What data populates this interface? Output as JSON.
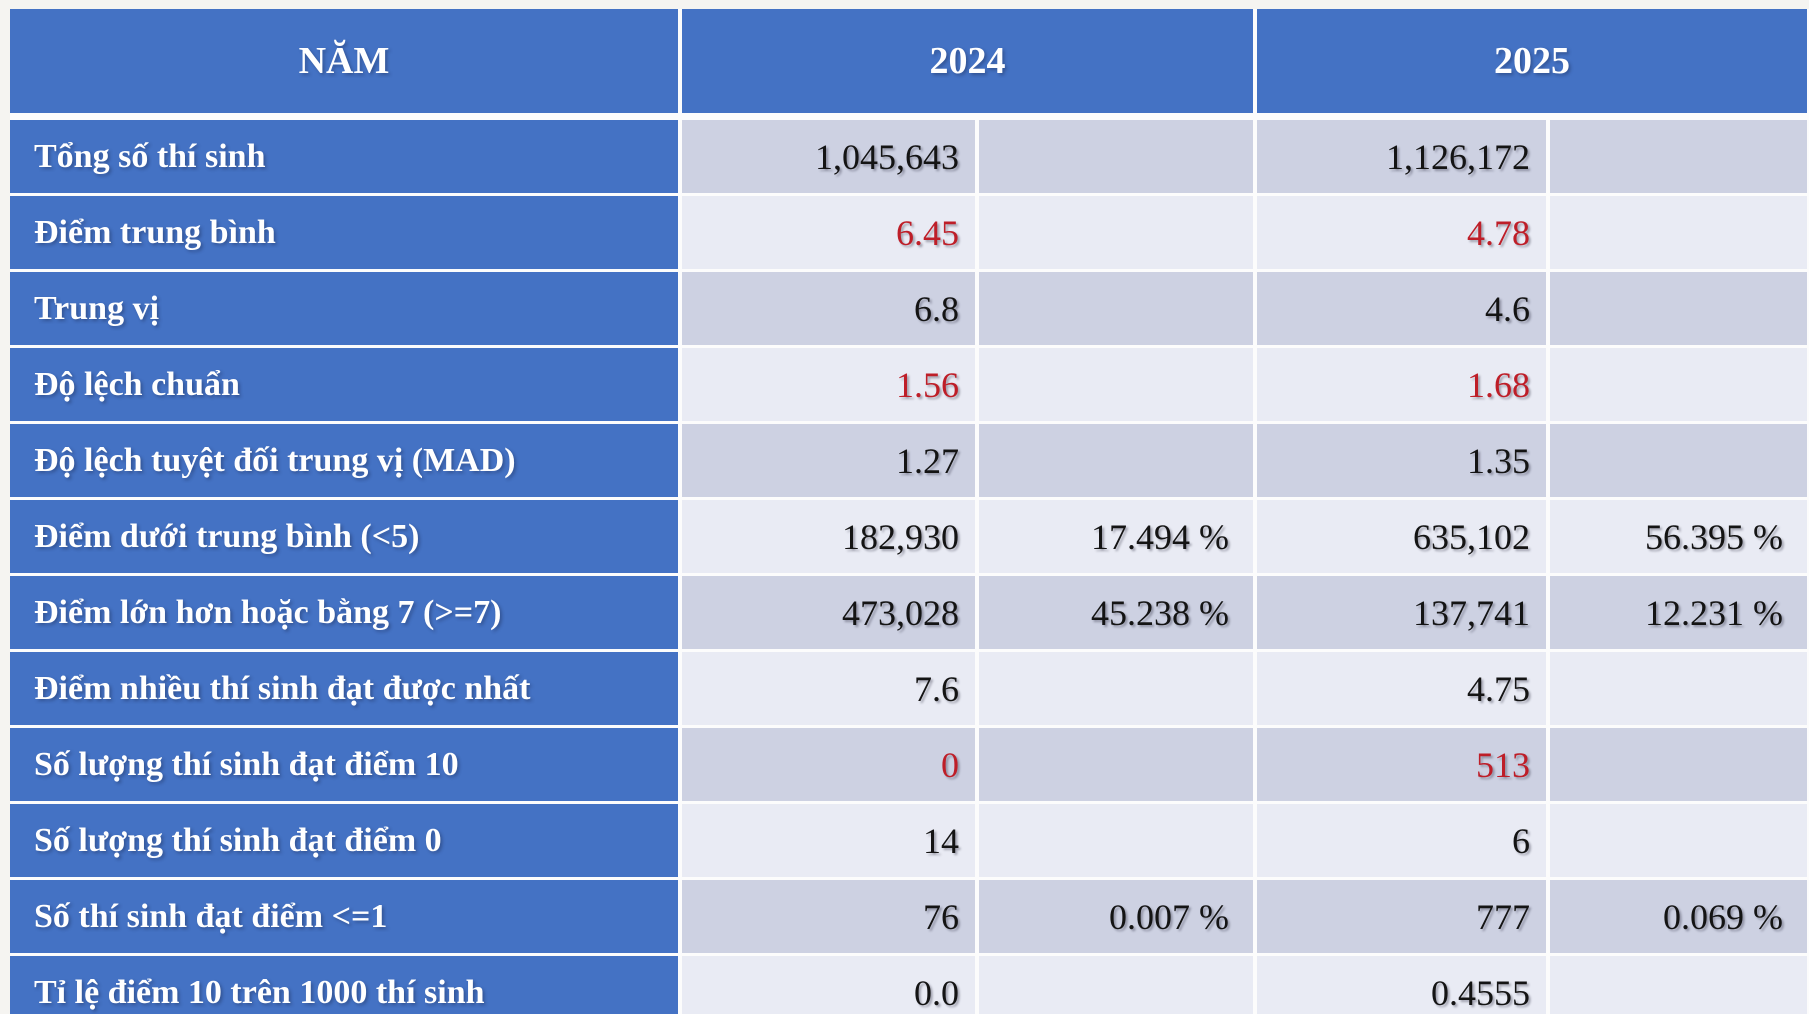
{
  "header": {
    "year_column_title": "NĂM",
    "col_2024": "2024",
    "col_2025": "2025"
  },
  "colors": {
    "header_blue": "#4472c4",
    "row_dark": "#cdd1e2",
    "row_light": "#e9ebf4",
    "highlight_red": "#be1e28",
    "value_black": "#141414",
    "grid_white": "#fcfcfc"
  },
  "chart_data": {
    "type": "table",
    "title": "NĂM",
    "columns": [
      "NĂM",
      "2024",
      "2024 %",
      "2025",
      "2025 %"
    ],
    "rows": [
      {
        "label": "Tổng số thí sinh",
        "value_color": "black",
        "y2024": {
          "value": "1,045,643",
          "percent": ""
        },
        "y2025": {
          "value": "1,126,172",
          "percent": ""
        }
      },
      {
        "label": "Điểm trung bình",
        "value_color": "red",
        "y2024": {
          "value": "6.45",
          "percent": ""
        },
        "y2025": {
          "value": "4.78",
          "percent": ""
        }
      },
      {
        "label": "Trung vị",
        "value_color": "black",
        "y2024": {
          "value": "6.8",
          "percent": ""
        },
        "y2025": {
          "value": "4.6",
          "percent": ""
        }
      },
      {
        "label": "Độ lệch chuẩn",
        "value_color": "red",
        "y2024": {
          "value": "1.56",
          "percent": ""
        },
        "y2025": {
          "value": "1.68",
          "percent": ""
        }
      },
      {
        "label": "Độ lệch tuyệt đối trung vị (MAD)",
        "value_color": "black",
        "y2024": {
          "value": "1.27",
          "percent": ""
        },
        "y2025": {
          "value": "1.35",
          "percent": ""
        }
      },
      {
        "label": "Điểm dưới trung bình (<5)",
        "value_color": "black",
        "y2024": {
          "value": "182,930",
          "percent": "17.494 %"
        },
        "y2025": {
          "value": "635,102",
          "percent": "56.395 %"
        }
      },
      {
        "label": "Điểm lớn hơn hoặc bằng 7 (>=7)",
        "value_color": "black",
        "y2024": {
          "value": "473,028",
          "percent": "45.238 %"
        },
        "y2025": {
          "value": "137,741",
          "percent": "12.231 %"
        }
      },
      {
        "label": "Điểm nhiều thí sinh đạt được nhất",
        "value_color": "black",
        "y2024": {
          "value": "7.6",
          "percent": ""
        },
        "y2025": {
          "value": "4.75",
          "percent": ""
        }
      },
      {
        "label": "Số lượng thí sinh đạt điểm 10",
        "value_color": "red",
        "y2024": {
          "value": "0",
          "percent": ""
        },
        "y2025": {
          "value": "513",
          "percent": ""
        }
      },
      {
        "label": "Số lượng thí sinh đạt điểm 0",
        "value_color": "black",
        "y2024": {
          "value": "14",
          "percent": ""
        },
        "y2025": {
          "value": "6",
          "percent": ""
        }
      },
      {
        "label": "Số thí sinh đạt điểm <=1",
        "value_color": "black",
        "y2024": {
          "value": "76",
          "percent": "0.007 %"
        },
        "y2025": {
          "value": "777",
          "percent": "0.069 %"
        }
      },
      {
        "label": "Tỉ lệ điểm 10 trên 1000 thí sinh",
        "value_color": "black",
        "y2024": {
          "value": "0.0",
          "percent": ""
        },
        "y2025": {
          "value": "0.4555",
          "percent": ""
        }
      }
    ]
  }
}
